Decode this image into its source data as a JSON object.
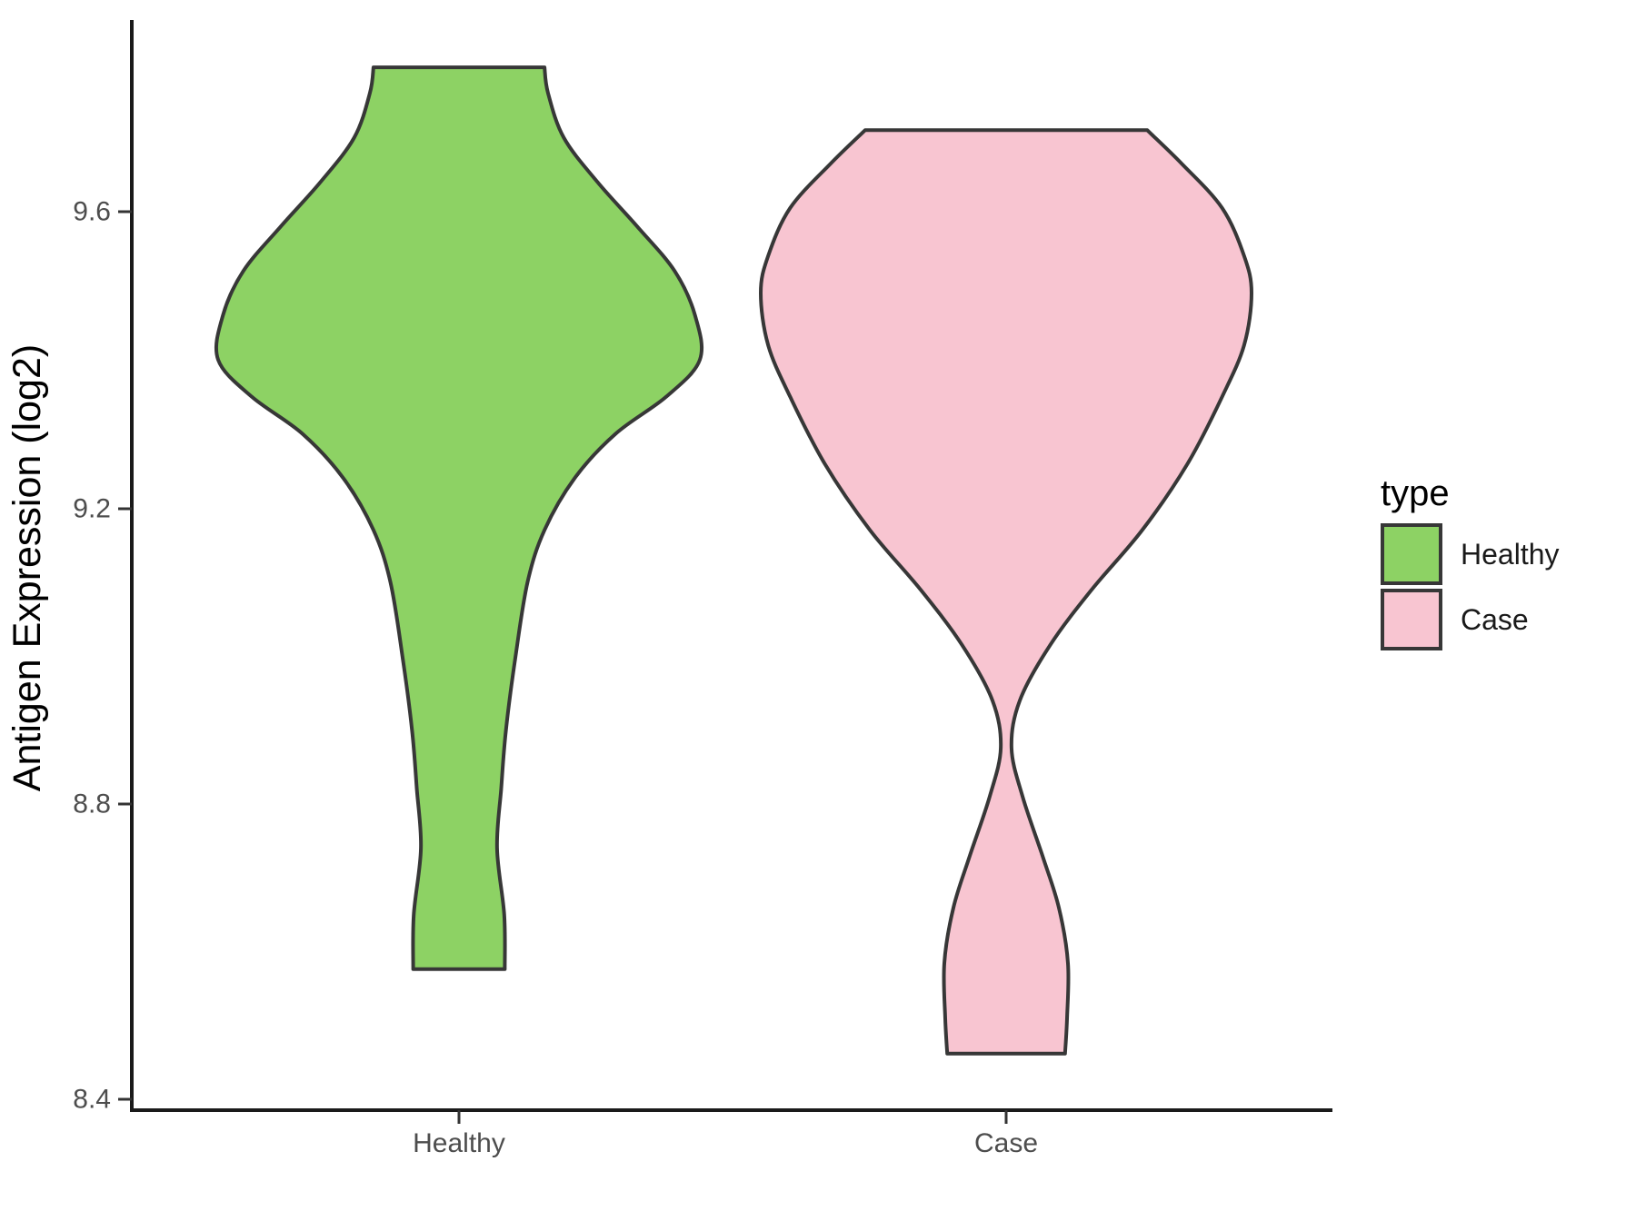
{
  "chart_data": {
    "type": "violin",
    "title": "",
    "xlabel": "",
    "ylabel": "Antigen Expression (log2)",
    "categories": [
      "Healthy",
      "Case"
    ],
    "y_tick_labels": [
      "9.6",
      "9.2",
      "8.8",
      "8.4"
    ],
    "y_tick_values": [
      9.6,
      9.2,
      8.8,
      8.4
    ],
    "ylim": [
      8.39,
      9.86
    ],
    "grid": "off",
    "legend_position": "right",
    "series": [
      {
        "name": "Healthy",
        "color": "#8dd264",
        "outline": "#373737",
        "value_min": 8.58,
        "value_max": 9.79,
        "profile": [
          {
            "value": 9.795,
            "density": 0.355
          },
          {
            "value": 9.76,
            "density": 0.37
          },
          {
            "value": 9.7,
            "density": 0.435
          },
          {
            "value": 9.64,
            "density": 0.575
          },
          {
            "value": 9.58,
            "density": 0.74
          },
          {
            "value": 9.52,
            "density": 0.895
          },
          {
            "value": 9.46,
            "density": 0.98
          },
          {
            "value": 9.4,
            "density": 1.0
          },
          {
            "value": 9.35,
            "density": 0.86
          },
          {
            "value": 9.3,
            "density": 0.65
          },
          {
            "value": 9.24,
            "density": 0.48
          },
          {
            "value": 9.17,
            "density": 0.355
          },
          {
            "value": 9.1,
            "density": 0.285
          },
          {
            "value": 9.0,
            "density": 0.235
          },
          {
            "value": 8.9,
            "density": 0.195
          },
          {
            "value": 8.82,
            "density": 0.175
          },
          {
            "value": 8.74,
            "density": 0.158
          },
          {
            "value": 8.65,
            "density": 0.188
          },
          {
            "value": 8.577,
            "density": 0.19
          }
        ]
      },
      {
        "name": "Case",
        "color": "#f8c5d1",
        "outline": "#373737",
        "value_min": 8.46,
        "value_max": 9.71,
        "profile": [
          {
            "value": 9.71,
            "density": 0.575
          },
          {
            "value": 9.665,
            "density": 0.715
          },
          {
            "value": 9.605,
            "density": 0.88
          },
          {
            "value": 9.54,
            "density": 0.97
          },
          {
            "value": 9.49,
            "density": 1.0
          },
          {
            "value": 9.42,
            "density": 0.97
          },
          {
            "value": 9.35,
            "density": 0.88
          },
          {
            "value": 9.26,
            "density": 0.74
          },
          {
            "value": 9.17,
            "density": 0.555
          },
          {
            "value": 9.09,
            "density": 0.35
          },
          {
            "value": 9.015,
            "density": 0.18
          },
          {
            "value": 8.94,
            "density": 0.056
          },
          {
            "value": 8.876,
            "density": 0.022
          },
          {
            "value": 8.81,
            "density": 0.067
          },
          {
            "value": 8.73,
            "density": 0.148
          },
          {
            "value": 8.66,
            "density": 0.215
          },
          {
            "value": 8.585,
            "density": 0.252
          },
          {
            "value": 8.51,
            "density": 0.248
          },
          {
            "value": 8.463,
            "density": 0.24
          }
        ]
      }
    ]
  },
  "legend": {
    "title": "type",
    "items": [
      {
        "label": "Healthy",
        "color": "#8dd264"
      },
      {
        "label": "Case",
        "color": "#f8c5d1"
      }
    ]
  },
  "axes": {
    "color": "#1a1a1a",
    "tick_color": "#333333"
  }
}
